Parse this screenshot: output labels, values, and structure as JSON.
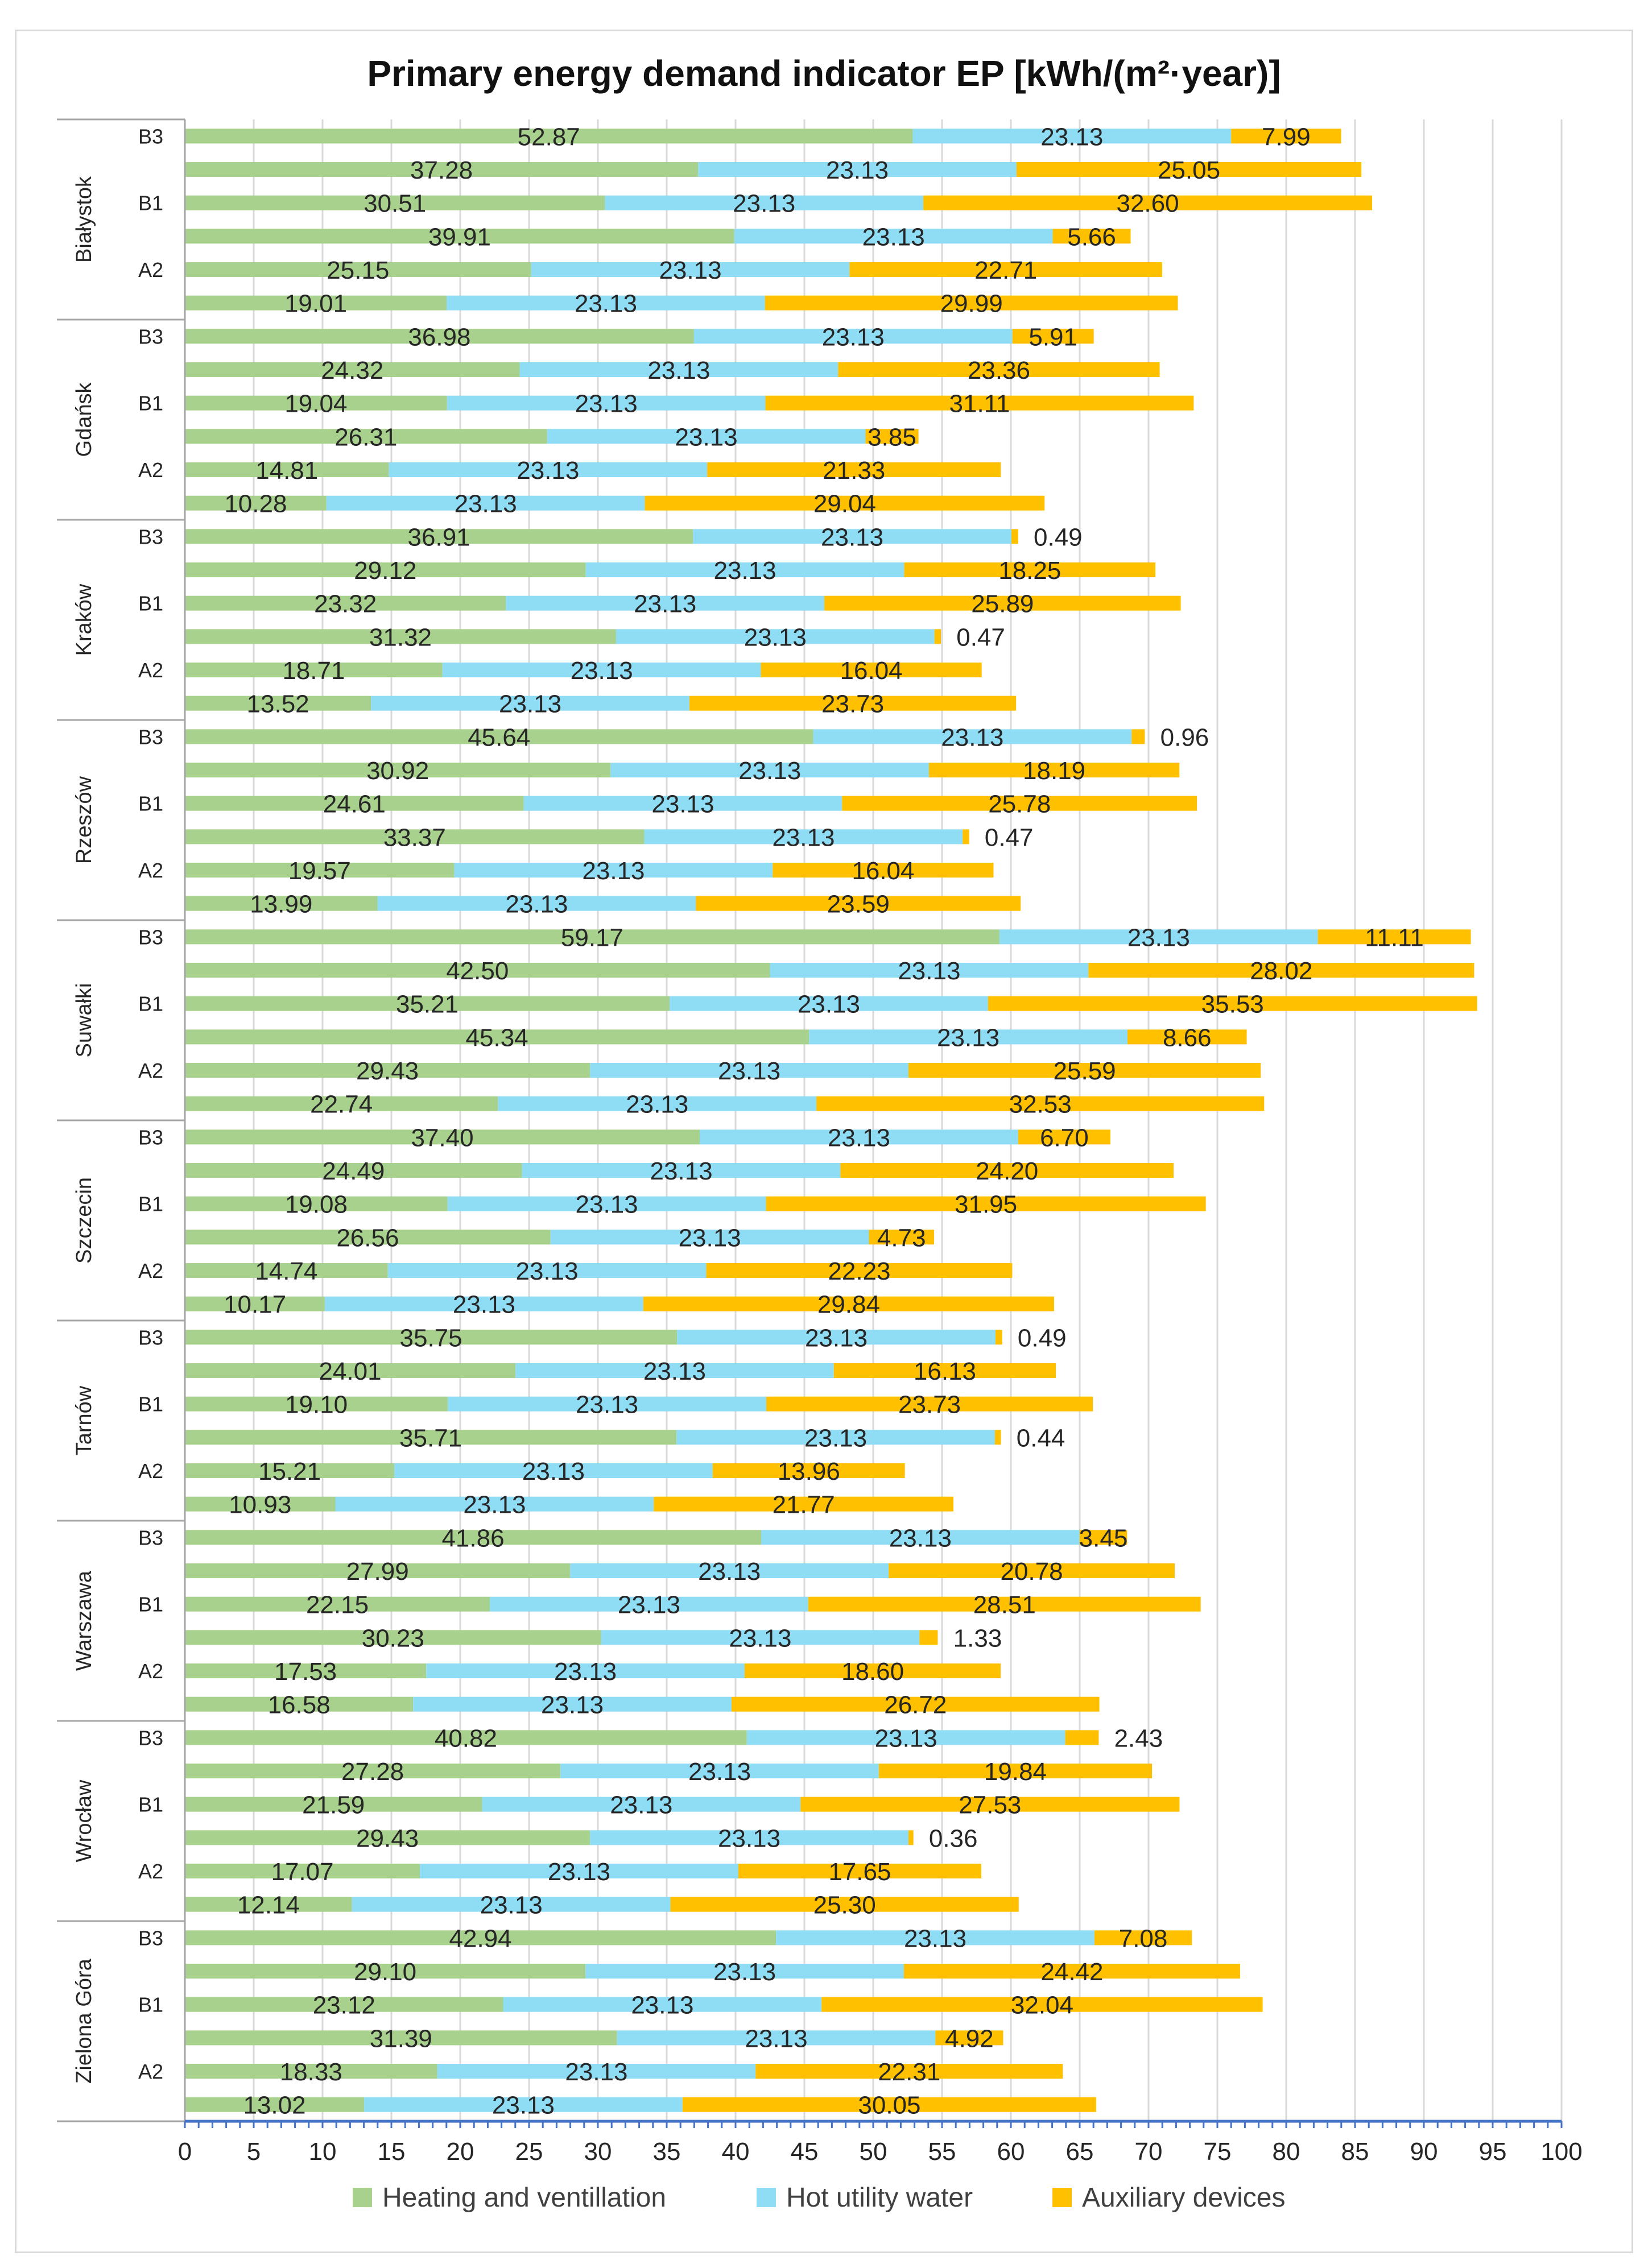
{
  "chart_data": {
    "type": "bar",
    "orientation": "horizontal",
    "stacked": true,
    "title": "Primary energy demand indicator EP [kWh/(m²·year)]",
    "xlabel": "",
    "ylabel": "",
    "xlim": [
      0,
      100
    ],
    "x_ticks": [
      "0",
      "5",
      "10",
      "15",
      "20",
      "25",
      "30",
      "35",
      "40",
      "45",
      "50",
      "55",
      "60",
      "65",
      "70",
      "75",
      "80",
      "85",
      "90",
      "95",
      "100"
    ],
    "grid": "vertical",
    "legend_position": "bottom",
    "series": [
      {
        "name": "Heating and ventillation",
        "color": "#a9d18e"
      },
      {
        "name": "Hot utility water",
        "color": "#8fdcf5"
      },
      {
        "name": "Auxiliary devices",
        "color": "#ffc000"
      }
    ],
    "groups": [
      {
        "city": "Białystok",
        "rows": [
          {
            "label": "B3",
            "values": [
              52.87,
              23.13,
              7.99
            ],
            "labels": [
              "52.87",
              "23.13",
              "7.99"
            ]
          },
          {
            "label": "",
            "values": [
              37.28,
              23.13,
              25.05
            ],
            "labels": [
              "37.28",
              "23.13",
              "25.05"
            ]
          },
          {
            "label": "B1",
            "values": [
              30.51,
              23.13,
              32.6
            ],
            "labels": [
              "30.51",
              "23.13",
              "32.60"
            ]
          },
          {
            "label": "",
            "values": [
              39.91,
              23.13,
              5.66
            ],
            "labels": [
              "39.91",
              "23.13",
              "5.66"
            ]
          },
          {
            "label": "A2",
            "values": [
              25.15,
              23.13,
              22.71
            ],
            "labels": [
              "25.15",
              "23.13",
              "22.71"
            ]
          },
          {
            "label": "",
            "values": [
              19.01,
              23.13,
              29.99
            ],
            "labels": [
              "19.01",
              "23.13",
              "29.99"
            ]
          }
        ]
      },
      {
        "city": "Gdańsk",
        "rows": [
          {
            "label": "B3",
            "values": [
              36.98,
              23.13,
              5.91
            ],
            "labels": [
              "36.98",
              "23.13",
              "5.91"
            ]
          },
          {
            "label": "",
            "values": [
              24.32,
              23.13,
              23.36
            ],
            "labels": [
              "24.32",
              "23.13",
              "23.36"
            ]
          },
          {
            "label": "B1",
            "values": [
              19.04,
              23.13,
              31.11
            ],
            "labels": [
              "19.04",
              "23.13",
              "31.11"
            ]
          },
          {
            "label": "",
            "values": [
              26.31,
              23.13,
              3.85
            ],
            "labels": [
              "26.31",
              "23.13",
              "3.85"
            ]
          },
          {
            "label": "A2",
            "values": [
              14.81,
              23.13,
              21.33
            ],
            "labels": [
              "14.81",
              "23.13",
              "21.33"
            ]
          },
          {
            "label": "",
            "values": [
              10.28,
              23.13,
              29.04
            ],
            "labels": [
              "10.28",
              "23.13",
              "29.04"
            ]
          }
        ]
      },
      {
        "city": "Kraków",
        "rows": [
          {
            "label": "B3",
            "values": [
              36.91,
              23.13,
              0.49
            ],
            "labels": [
              "36.91",
              "23.13",
              "0.49"
            ]
          },
          {
            "label": "",
            "values": [
              29.12,
              23.13,
              18.25
            ],
            "labels": [
              "29.12",
              "23.13",
              "18.25"
            ]
          },
          {
            "label": "B1",
            "values": [
              23.32,
              23.13,
              25.89
            ],
            "labels": [
              "23.32",
              "23.13",
              "25.89"
            ]
          },
          {
            "label": "",
            "values": [
              31.32,
              23.13,
              0.47
            ],
            "labels": [
              "31.32",
              "23.13",
              "0.47"
            ]
          },
          {
            "label": "A2",
            "values": [
              18.71,
              23.13,
              16.04
            ],
            "labels": [
              "18.71",
              "23.13",
              "16.04"
            ]
          },
          {
            "label": "",
            "values": [
              13.52,
              23.13,
              23.73
            ],
            "labels": [
              "13.52",
              "23.13",
              "23.73"
            ]
          }
        ]
      },
      {
        "city": "Rzeszów",
        "rows": [
          {
            "label": "B3",
            "values": [
              45.64,
              23.13,
              0.96
            ],
            "labels": [
              "45.64",
              "23.13",
              "0.96"
            ]
          },
          {
            "label": "",
            "values": [
              30.92,
              23.13,
              18.19
            ],
            "labels": [
              "30.92",
              "23.13",
              "18.19"
            ]
          },
          {
            "label": "B1",
            "values": [
              24.61,
              23.13,
              25.78
            ],
            "labels": [
              "24.61",
              "23.13",
              "25.78"
            ]
          },
          {
            "label": "",
            "values": [
              33.37,
              23.13,
              0.47
            ],
            "labels": [
              "33.37",
              "23.13",
              "0.47"
            ]
          },
          {
            "label": "A2",
            "values": [
              19.57,
              23.13,
              16.04
            ],
            "labels": [
              "19.57",
              "23.13",
              "16.04"
            ]
          },
          {
            "label": "",
            "values": [
              13.99,
              23.13,
              23.59
            ],
            "labels": [
              "13.99",
              "23.13",
              "23.59"
            ]
          }
        ]
      },
      {
        "city": "Suwałki",
        "rows": [
          {
            "label": "B3",
            "values": [
              59.17,
              23.13,
              11.11
            ],
            "labels": [
              "59.17",
              "23.13",
              "11.11"
            ]
          },
          {
            "label": "",
            "values": [
              42.5,
              23.13,
              28.02
            ],
            "labels": [
              "42.50",
              "23.13",
              "28.02"
            ]
          },
          {
            "label": "B1",
            "values": [
              35.21,
              23.13,
              35.53
            ],
            "labels": [
              "35.21",
              "23.13",
              "35.53"
            ]
          },
          {
            "label": "",
            "values": [
              45.34,
              23.13,
              8.66
            ],
            "labels": [
              "45.34",
              "23.13",
              "8.66"
            ]
          },
          {
            "label": "A2",
            "values": [
              29.43,
              23.13,
              25.59
            ],
            "labels": [
              "29.43",
              "23.13",
              "25.59"
            ]
          },
          {
            "label": "",
            "values": [
              22.74,
              23.13,
              32.53
            ],
            "labels": [
              "22.74",
              "23.13",
              "32.53"
            ]
          }
        ]
      },
      {
        "city": "Szczecin",
        "rows": [
          {
            "label": "B3",
            "values": [
              37.4,
              23.13,
              6.7
            ],
            "labels": [
              "37.40",
              "23.13",
              "6.70"
            ]
          },
          {
            "label": "",
            "values": [
              24.49,
              23.13,
              24.2
            ],
            "labels": [
              "24.49",
              "23.13",
              "24.20"
            ]
          },
          {
            "label": "B1",
            "values": [
              19.08,
              23.13,
              31.95
            ],
            "labels": [
              "19.08",
              "23.13",
              "31.95"
            ]
          },
          {
            "label": "",
            "values": [
              26.56,
              23.13,
              4.73
            ],
            "labels": [
              "26.56",
              "23.13",
              "4.73"
            ]
          },
          {
            "label": "A2",
            "values": [
              14.74,
              23.13,
              22.23
            ],
            "labels": [
              "14.74",
              "23.13",
              "22.23"
            ]
          },
          {
            "label": "",
            "values": [
              10.17,
              23.13,
              29.84
            ],
            "labels": [
              "10.17",
              "23.13",
              "29.84"
            ]
          }
        ]
      },
      {
        "city": "Tarnów",
        "rows": [
          {
            "label": "B3",
            "values": [
              35.75,
              23.13,
              0.49
            ],
            "labels": [
              "35.75",
              "23.13",
              "0.49"
            ]
          },
          {
            "label": "",
            "values": [
              24.01,
              23.13,
              16.13
            ],
            "labels": [
              "24.01",
              "23.13",
              "16.13"
            ]
          },
          {
            "label": "B1",
            "values": [
              19.1,
              23.13,
              23.73
            ],
            "labels": [
              "19.10",
              "23.13",
              "23.73"
            ]
          },
          {
            "label": "",
            "values": [
              35.71,
              23.13,
              0.44
            ],
            "labels": [
              "35.71",
              "23.13",
              "0.44"
            ]
          },
          {
            "label": "A2",
            "values": [
              15.21,
              23.13,
              13.96
            ],
            "labels": [
              "15.21",
              "23.13",
              "13.96"
            ]
          },
          {
            "label": "",
            "values": [
              10.93,
              23.13,
              21.77
            ],
            "labels": [
              "10.93",
              "23.13",
              "21.77"
            ]
          }
        ]
      },
      {
        "city": "Warszawa",
        "rows": [
          {
            "label": "B3",
            "values": [
              41.86,
              23.13,
              3.45
            ],
            "labels": [
              "41.86",
              "23.13",
              "3.45"
            ]
          },
          {
            "label": "",
            "values": [
              27.99,
              23.13,
              20.78
            ],
            "labels": [
              "27.99",
              "23.13",
              "20.78"
            ]
          },
          {
            "label": "B1",
            "values": [
              22.15,
              23.13,
              28.51
            ],
            "labels": [
              "22.15",
              "23.13",
              "28.51"
            ]
          },
          {
            "label": "",
            "values": [
              30.23,
              23.13,
              1.33
            ],
            "labels": [
              "30.23",
              "23.13",
              "1.33"
            ]
          },
          {
            "label": "A2",
            "values": [
              17.53,
              23.13,
              18.6
            ],
            "labels": [
              "17.53",
              "23.13",
              "18.60"
            ]
          },
          {
            "label": "",
            "values": [
              16.58,
              23.13,
              26.72
            ],
            "labels": [
              "16.58",
              "23.13",
              "26.72"
            ]
          }
        ]
      },
      {
        "city": "Wrocław",
        "rows": [
          {
            "label": "B3",
            "values": [
              40.82,
              23.13,
              2.43
            ],
            "labels": [
              "40.82",
              "23.13",
              "2.43"
            ]
          },
          {
            "label": "",
            "values": [
              27.28,
              23.13,
              19.84
            ],
            "labels": [
              "27.28",
              "23.13",
              "19.84"
            ]
          },
          {
            "label": "B1",
            "values": [
              21.59,
              23.13,
              27.53
            ],
            "labels": [
              "21.59",
              "23.13",
              "27.53"
            ]
          },
          {
            "label": "",
            "values": [
              29.43,
              23.13,
              0.36
            ],
            "labels": [
              "29.43",
              "23.13",
              "0.36"
            ]
          },
          {
            "label": "A2",
            "values": [
              17.07,
              23.13,
              17.65
            ],
            "labels": [
              "17.07",
              "23.13",
              "17.65"
            ]
          },
          {
            "label": "",
            "values": [
              12.14,
              23.13,
              25.3
            ],
            "labels": [
              "12.14",
              "23.13",
              "25.30"
            ]
          }
        ]
      },
      {
        "city": "Zielona Góra",
        "rows": [
          {
            "label": "B3",
            "values": [
              42.94,
              23.13,
              7.08
            ],
            "labels": [
              "42.94",
              "23.13",
              "7.08"
            ]
          },
          {
            "label": "",
            "values": [
              29.1,
              23.13,
              24.42
            ],
            "labels": [
              "29.10",
              "23.13",
              "24.42"
            ]
          },
          {
            "label": "B1",
            "values": [
              23.12,
              23.13,
              32.04
            ],
            "labels": [
              "23.12",
              "23.13",
              "32.04"
            ]
          },
          {
            "label": "",
            "values": [
              31.39,
              23.13,
              4.92
            ],
            "labels": [
              "31.39",
              "23.13",
              "4.92"
            ]
          },
          {
            "label": "A2",
            "values": [
              18.33,
              23.13,
              22.31
            ],
            "labels": [
              "18.33",
              "23.13",
              "22.31"
            ]
          },
          {
            "label": "",
            "values": [
              13.02,
              23.13,
              30.05
            ],
            "labels": [
              "13.02",
              "23.13",
              "30.05"
            ]
          }
        ]
      }
    ]
  }
}
